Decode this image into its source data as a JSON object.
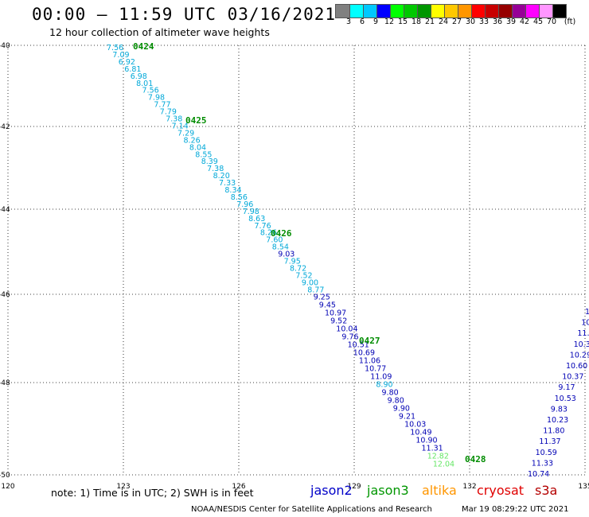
{
  "title": "00:00 – 11:59 UTC 03/16/2021",
  "subtitle": "12 hour collection of altimeter wave heights",
  "color_scale": {
    "labels": [
      "3",
      "6",
      "9",
      "12",
      "15",
      "18",
      "21",
      "24",
      "27",
      "30",
      "33",
      "36",
      "39",
      "42",
      "45",
      "70",
      "(ft)"
    ],
    "colors": [
      "#808080",
      "#00ffff",
      "#00c8ff",
      "#0000ff",
      "#00ff00",
      "#00c800",
      "#009600",
      "#ffff00",
      "#ffc800",
      "#ff9600",
      "#ff0000",
      "#c80000",
      "#960000",
      "#960096",
      "#ff00ff",
      "#ff96ff",
      "#000000"
    ]
  },
  "axes": {
    "lat_ticks": [
      "-40",
      "-42",
      "-44",
      "-46",
      "-48",
      "-50"
    ],
    "lon_ticks": [
      "120",
      "123",
      "126",
      "129",
      "132",
      "135"
    ]
  },
  "passes": [
    "0424",
    "0425",
    "0426",
    "0427",
    "0428"
  ],
  "track1": [
    "7.56",
    "7.09",
    "6.92",
    "6.81",
    "6.98",
    "8.01",
    "7.56",
    "7.98",
    "7.77",
    "7.79",
    "7.38",
    "7.14",
    "7.29",
    "8.26",
    "8.04",
    "8.55",
    "8.39",
    "7.38",
    "8.20",
    "7.33",
    "8.34",
    "8.56",
    "7.96",
    "7.98",
    "8.63",
    "7.76",
    "8.26",
    "7.60",
    "8.54",
    "9.03",
    "7.95",
    "8.72",
    "7.52",
    "9.00",
    "8.77",
    "9.25",
    "9.45",
    "10.97",
    "9.52",
    "10.04",
    "9.76",
    "10.51",
    "10.69",
    "11.06",
    "10.77",
    "11.09",
    "8.90",
    "9.80",
    "9.80",
    "9.90",
    "9.21",
    "10.03",
    "10.49",
    "10.90",
    "11.31",
    "12.82",
    "12.04"
  ],
  "track2": [
    "10.74",
    "11.33",
    "10.59",
    "11.37",
    "11.80",
    "10.23",
    "9.83",
    "10.53",
    "9.17",
    "10.37",
    "10.60",
    "10.29",
    "10.3",
    "11.",
    "10",
    "1"
  ],
  "note": "note: 1) Time is in UTC; 2) SWH is in feet",
  "satellites": [
    {
      "name": "jason2",
      "color": "#0000c8"
    },
    {
      "name": "jason3",
      "color": "#009600"
    },
    {
      "name": "altika",
      "color": "#ff9600"
    },
    {
      "name": "cryosat",
      "color": "#e00000"
    },
    {
      "name": "s3a",
      "color": "#b40000"
    }
  ],
  "footer": "NOAA/NESDIS Center for Satellite Applications and Research",
  "timestamp": "Mar 19 08:29:22 UTC 2021",
  "label_colors": {
    "cyan": "#00a8d8",
    "blue": "#0000b4",
    "light_green": "#64e664",
    "pass": "#008c00"
  }
}
